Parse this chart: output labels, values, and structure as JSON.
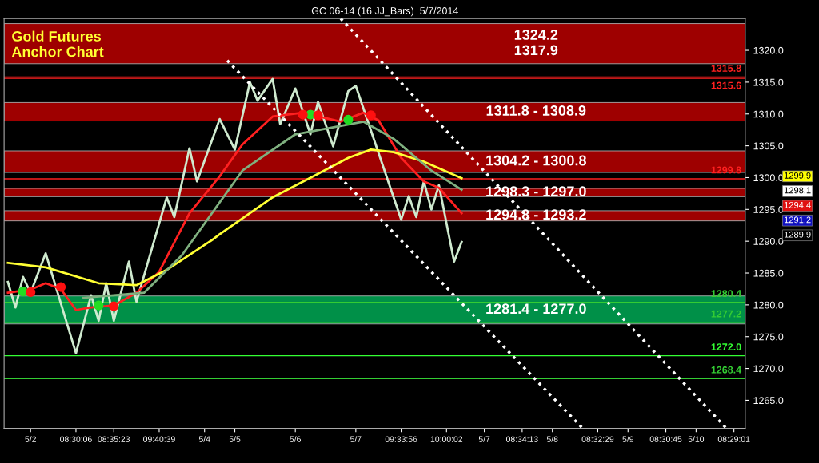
{
  "chart_data": {
    "type": "line",
    "title": "GC 06-14 (16 JJ_Bars)  5/7/2014",
    "subtitle": "Gold Futures\nAnchor Chart",
    "ylim": [
      1260.6,
      1325.0
    ],
    "categories": [
      null,
      null,
      null,
      "5/2",
      null,
      null,
      null,
      null,
      null,
      "08:30:06",
      null,
      null,
      null,
      null,
      "08:35:23",
      null,
      null,
      null,
      null,
      null,
      "09:40:39",
      null,
      null,
      null,
      null,
      null,
      "5/4",
      null,
      null,
      null,
      "5/5",
      null,
      null,
      null,
      null,
      null,
      null,
      null,
      "5/6",
      null,
      null,
      null,
      null,
      null,
      null,
      null,
      "5/7",
      null,
      null,
      null,
      null,
      null,
      "09:33:56",
      null,
      null,
      null,
      null,
      null,
      "10:00:02",
      null,
      null,
      null,
      null,
      "5/7",
      null,
      null,
      null,
      null,
      "08:34:13",
      null,
      null,
      null,
      "5/8",
      null,
      null,
      null,
      null,
      null,
      "08:32:29",
      null,
      null,
      null,
      "5/9",
      null,
      null,
      null,
      null,
      "08:30:45",
      null,
      null,
      null,
      "5/10",
      null,
      null,
      null,
      null,
      "08:29:01",
      null
    ],
    "yticks": [
      {
        "value": 1265,
        "label": "1265.0"
      },
      {
        "value": 1270,
        "label": "1270.0"
      },
      {
        "value": 1275,
        "label": "1275.0"
      },
      {
        "value": 1280,
        "label": "1280.0"
      },
      {
        "value": 1285,
        "label": "1285.0"
      },
      {
        "value": 1290,
        "label": "1290.0"
      },
      {
        "value": 1295,
        "label": "1295.0"
      },
      {
        "value": 1300,
        "label": "1300.0"
      },
      {
        "value": 1305,
        "label": "1305.0"
      },
      {
        "value": 1310,
        "label": "1310.0"
      },
      {
        "value": 1315,
        "label": "1315.0"
      },
      {
        "value": 1320,
        "label": "1320.0"
      }
    ],
    "grid": false,
    "legend": false,
    "bands": [
      {
        "axis": "y",
        "from": 1317.9,
        "to": 1324.2,
        "label": "1324.2\n1317.9",
        "color": "#b00000"
      },
      {
        "axis": "y",
        "from": 1308.9,
        "to": 1311.8,
        "label": "1311.8 - 1308.9",
        "color": "#b00000"
      },
      {
        "axis": "y",
        "from": 1300.8,
        "to": 1304.2,
        "label": "1304.2 - 1300.8",
        "color": "#b00000"
      },
      {
        "axis": "y",
        "from": 1297.0,
        "to": 1298.3,
        "label": "1298.3 - 1297.0",
        "color": "#b00000"
      },
      {
        "axis": "y",
        "from": 1293.2,
        "to": 1294.8,
        "label": "1294.8 - 1293.2",
        "color": "#b00000"
      },
      {
        "axis": "y",
        "from": 1277.0,
        "to": 1281.4,
        "label": "1281.4 - 1277.0",
        "color": "#00a050"
      }
    ],
    "ref_lines": [
      {
        "axis": "y",
        "value": 1315.8,
        "label": "1315.8",
        "color": "#ff2020"
      },
      {
        "axis": "y",
        "value": 1315.6,
        "label": "1315.6",
        "color": "#ff2020"
      },
      {
        "axis": "y",
        "value": 1299.8,
        "label": "1299.8",
        "color": "#ff2020"
      },
      {
        "axis": "y",
        "value": 1280.4,
        "label": "1280.4",
        "color": "#33cc33"
      },
      {
        "axis": "y",
        "value": 1277.2,
        "label": "1277.2",
        "color": "#33cc33"
      },
      {
        "axis": "y",
        "value": 1272.0,
        "label": "1272.0",
        "color": "#33ff33"
      },
      {
        "axis": "y",
        "value": 1268.4,
        "label": "1268.4",
        "color": "#33cc33"
      }
    ],
    "annotations": [
      "1299.9",
      "1298.1",
      "1294.4",
      "1291.2",
      "1289.9"
    ],
    "series": [
      {
        "color": "#cfeacf",
        "values": [
          1283.6,
          1279.6,
          1284.4,
          1281.9,
          null,
          1288.1,
          null,
          null,
          null,
          1272.4,
          null,
          1281.5,
          1277.5,
          1283.4,
          1277.5,
          null,
          1286.8,
          1280.5,
          null,
          null,
          null,
          1296.9,
          1293.8,
          null,
          1304.6,
          1299.4,
          null,
          null,
          1309.2,
          null,
          1304.4,
          null,
          1315.0,
          1312.1,
          null,
          1315.5,
          1308.4,
          null,
          1314.0,
          null,
          1306.8,
          1311.9,
          null,
          1304.9,
          null,
          1313.6,
          1314.4,
          null,
          null,
          null,
          null,
          null,
          1293.4,
          1297.1,
          1293.8,
          1299.4,
          1295.0,
          1298.8,
          null,
          1286.8,
          1289.9,
          null,
          null,
          null,
          null,
          null,
          null,
          null,
          null,
          null,
          null,
          null,
          null,
          null,
          null,
          null,
          null,
          null,
          null,
          null,
          null,
          null,
          null,
          null,
          null,
          null,
          null,
          null,
          null,
          null,
          null,
          null,
          null,
          null,
          null,
          null,
          null,
          null
        ]
      },
      {
        "color": "#ff2020",
        "values": [
          1281.9,
          null,
          null,
          1282.4,
          null,
          1283.4,
          null,
          1282.5,
          null,
          1279.2,
          null,
          1279.6,
          null,
          null,
          1279.9,
          null,
          null,
          1281.9,
          null,
          null,
          1285.2,
          null,
          null,
          null,
          1294.4,
          null,
          null,
          null,
          1300.2,
          null,
          null,
          1305.2,
          null,
          null,
          null,
          1309.6,
          null,
          null,
          null,
          1310.2,
          null,
          null,
          null,
          null,
          1308.8,
          null,
          null,
          1310.2,
          null,
          1309.0,
          null,
          null,
          1303.1,
          null,
          null,
          1299.4,
          null,
          1298.4,
          null,
          null,
          1294.4,
          null,
          null,
          null,
          null,
          null,
          null,
          null,
          null,
          null,
          null,
          null,
          null,
          null,
          null,
          null,
          null,
          null,
          null,
          null,
          null,
          null,
          null,
          null,
          null,
          null,
          null,
          null,
          null,
          null,
          null,
          null,
          null,
          null,
          null,
          null,
          null,
          null
        ]
      },
      {
        "color": "#ffff33",
        "values": [
          1286.6,
          null,
          null,
          null,
          null,
          1285.9,
          null,
          null,
          null,
          null,
          null,
          null,
          1283.4,
          null,
          null,
          null,
          null,
          1283.1,
          null,
          null,
          null,
          1285.5,
          null,
          null,
          null,
          null,
          null,
          1290.2,
          1291.1,
          null,
          null,
          null,
          null,
          null,
          null,
          1296.9,
          null,
          null,
          null,
          null,
          null,
          1300.6,
          null,
          null,
          null,
          1303.1,
          null,
          null,
          1304.4,
          null,
          null,
          1304.0,
          null,
          null,
          null,
          1302.5,
          null,
          null,
          null,
          null,
          1299.9,
          null,
          null,
          null,
          null,
          null,
          null,
          null,
          null,
          null,
          null,
          null,
          null,
          null,
          null,
          null,
          null,
          null,
          null,
          null,
          null,
          null,
          null,
          null,
          null,
          null,
          null,
          null,
          null,
          null,
          null,
          null,
          null,
          null,
          null,
          null,
          null,
          null
        ]
      },
      {
        "color": "#7fb07f",
        "values": [
          null,
          null,
          null,
          null,
          null,
          null,
          null,
          null,
          null,
          null,
          1281.1,
          null,
          null,
          null,
          null,
          null,
          null,
          null,
          1281.9,
          null,
          null,
          null,
          null,
          1287.8,
          null,
          null,
          null,
          null,
          null,
          null,
          null,
          1301.1,
          null,
          null,
          null,
          null,
          null,
          null,
          1306.8,
          null,
          null,
          null,
          null,
          null,
          null,
          null,
          null,
          1308.8,
          null,
          null,
          null,
          1306.1,
          null,
          null,
          null,
          null,
          1301.1,
          null,
          null,
          null,
          1298.1,
          null,
          null,
          null,
          null,
          null,
          null,
          null,
          null,
          null,
          null,
          null,
          null,
          null,
          null,
          null,
          null,
          null,
          null,
          null,
          null,
          null,
          null,
          null,
          null,
          null,
          null,
          null,
          null,
          null,
          null,
          null,
          null,
          null,
          null,
          null,
          null,
          null
        ]
      },
      {
        "color": "#ffffff",
        "line_style": "dotted",
        "values": [
          null,
          null,
          null,
          null,
          null,
          null,
          null,
          null,
          null,
          null,
          null,
          null,
          null,
          null,
          null,
          null,
          null,
          null,
          null,
          null,
          null,
          null,
          null,
          null,
          null,
          null,
          null,
          null,
          null,
          1318.4,
          null,
          null,
          null,
          null,
          null,
          null,
          null,
          null,
          null,
          null,
          null,
          null,
          null,
          null,
          null,
          null,
          null,
          null,
          null,
          null,
          null,
          null,
          null,
          null,
          null,
          null,
          null,
          null,
          null,
          null,
          null,
          null,
          null,
          null,
          null,
          null,
          null,
          null,
          null,
          null,
          null,
          null,
          null,
          null,
          null,
          null,
          1260.6,
          null,
          null,
          null,
          null,
          null,
          null,
          null,
          null,
          null,
          null,
          null,
          null,
          null,
          null,
          null,
          null,
          null,
          null,
          null,
          null,
          null
        ]
      },
      {
        "color": "#ffffff",
        "line_style": "dotted",
        "values": [
          null,
          null,
          null,
          null,
          null,
          null,
          null,
          null,
          null,
          null,
          null,
          null,
          null,
          null,
          null,
          null,
          null,
          null,
          null,
          null,
          null,
          null,
          null,
          null,
          null,
          null,
          null,
          null,
          null,
          null,
          null,
          null,
          null,
          null,
          null,
          null,
          null,
          null,
          null,
          null,
          null,
          null,
          null,
          null,
          1325.0,
          null,
          null,
          null,
          null,
          null,
          null,
          null,
          null,
          null,
          null,
          null,
          null,
          null,
          null,
          null,
          null,
          null,
          null,
          null,
          null,
          null,
          null,
          null,
          null,
          null,
          null,
          null,
          null,
          null,
          null,
          null,
          null,
          null,
          null,
          null,
          null,
          null,
          null,
          null,
          null,
          null,
          null,
          null,
          null,
          null,
          null,
          null,
          null,
          null,
          null,
          1260.6,
          null,
          null
        ]
      },
      {
        "type": "scatter",
        "color": "#22dd22",
        "marker": "circle",
        "values": [
          null,
          null,
          1282.1,
          null,
          null,
          null,
          null,
          null,
          null,
          null,
          null,
          null,
          1279.9,
          null,
          null,
          null,
          null,
          null,
          null,
          null,
          null,
          null,
          null,
          null,
          null,
          null,
          null,
          null,
          null,
          null,
          null,
          null,
          null,
          null,
          null,
          null,
          null,
          null,
          null,
          null,
          1309.9,
          null,
          null,
          null,
          null,
          1309.1,
          null,
          null,
          null,
          null,
          null,
          null,
          null,
          null,
          null,
          null,
          null,
          null,
          null,
          null,
          null,
          null,
          null,
          null,
          null,
          null,
          null,
          null,
          null,
          null,
          null,
          null,
          null,
          null,
          null,
          null,
          null,
          null,
          null,
          null,
          null,
          null,
          null,
          null,
          null,
          null,
          null,
          null,
          null,
          null,
          null,
          null,
          null,
          null,
          null,
          null,
          null,
          null
        ]
      },
      {
        "type": "scatter",
        "color": "#ff1010",
        "marker": "circle",
        "values": [
          null,
          null,
          null,
          1282.0,
          null,
          null,
          null,
          1282.8,
          null,
          null,
          null,
          null,
          null,
          null,
          1279.8,
          null,
          null,
          null,
          null,
          null,
          null,
          null,
          null,
          null,
          null,
          null,
          null,
          null,
          null,
          null,
          null,
          null,
          null,
          null,
          null,
          null,
          null,
          null,
          null,
          1309.9,
          null,
          1309.8,
          null,
          null,
          null,
          null,
          null,
          null,
          1309.8,
          null,
          null,
          null,
          null,
          null,
          null,
          null,
          null,
          null,
          null,
          null,
          null,
          null,
          null,
          null,
          null,
          null,
          null,
          null,
          null,
          null,
          null,
          null,
          null,
          null,
          null,
          null,
          null,
          null,
          null,
          null,
          null,
          null,
          null,
          null,
          null,
          null,
          null,
          null,
          null,
          null,
          null,
          null,
          null,
          null,
          null,
          null,
          null,
          null
        ]
      }
    ]
  }
}
